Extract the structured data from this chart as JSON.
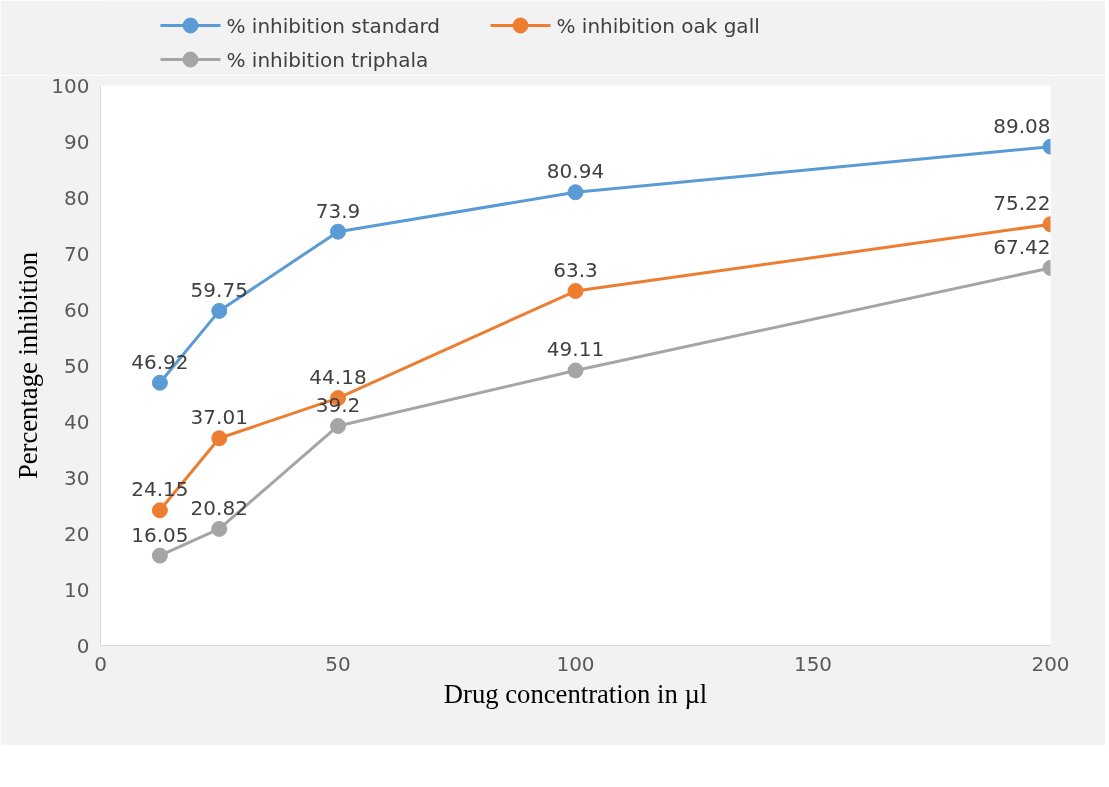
{
  "chart_data": {
    "type": "line",
    "xlabel": "Drug concentration in µl",
    "ylabel": "Percentage inhibition",
    "x": [
      12.5,
      25,
      50,
      100,
      200
    ],
    "series": [
      {
        "name": "% inhibition standard",
        "color": "#5b9bd5",
        "values": [
          46.92,
          59.75,
          73.9,
          80.94,
          89.08
        ]
      },
      {
        "name": "% inhibition oak gall",
        "color": "#ed7d31",
        "values": [
          24.15,
          37.01,
          44.18,
          63.3,
          75.22
        ]
      },
      {
        "name": "% inhibition triphala",
        "color": "#a5a5a5",
        "values": [
          16.05,
          20.82,
          39.2,
          49.11,
          67.42
        ]
      }
    ],
    "xlim": [
      0,
      200
    ],
    "xticks": [
      0,
      50,
      100,
      150,
      200
    ],
    "ylim": [
      0,
      100
    ],
    "yticks": [
      0,
      10,
      20,
      30,
      40,
      50,
      60,
      70,
      80,
      90,
      100
    ],
    "grid": false,
    "legend": "top",
    "marker": "circle",
    "line_style": "solid",
    "data_labels": true
  }
}
